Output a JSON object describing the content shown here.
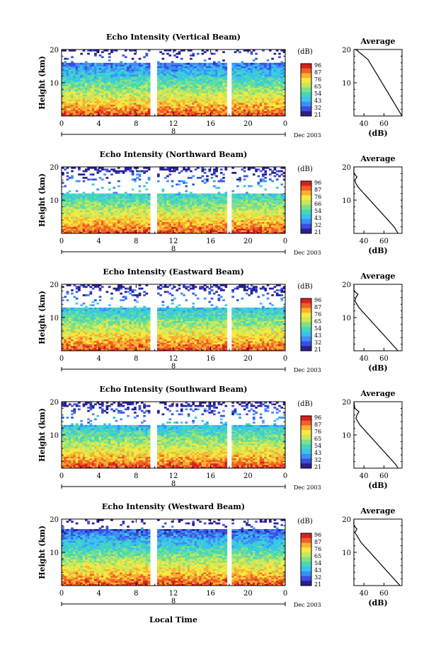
{
  "figure": {
    "xlabel": "Local Time",
    "date_label": "Dec 2003",
    "day_label": "8"
  },
  "chart_data": [
    {
      "type": "heatmap",
      "title": "Echo Intensity (Vertical Beam)",
      "ylabel": "Height (km)",
      "x_ticks": [
        "0",
        "4",
        "8",
        "12",
        "16",
        "20",
        "0"
      ],
      "y_ticks": [
        "10",
        "20"
      ],
      "xlim": [
        0,
        24
      ],
      "ylim": [
        0,
        20
      ],
      "colorbar": {
        "label": "(dB)",
        "ticks": [
          "96",
          "87",
          "76",
          "65",
          "54",
          "43",
          "32",
          "21"
        ]
      },
      "gaps_hours": [
        9.9,
        18.0
      ],
      "echo_top_km": 16
    },
    {
      "type": "line",
      "title": "Average",
      "xlabel": "(dB)",
      "x_ticks": [
        "40",
        "60"
      ],
      "y_ticks": [
        "10",
        "20"
      ],
      "ylim": [
        0,
        20
      ],
      "x": [
        78,
        76,
        74,
        72,
        70,
        68,
        66,
        64,
        62,
        60,
        58,
        56,
        54,
        52,
        50,
        48,
        46,
        44,
        42,
        40,
        38,
        36,
        34,
        32,
        30,
        30,
        31,
        34,
        30,
        30
      ],
      "y": [
        0,
        1,
        2,
        3,
        4,
        5,
        6,
        7,
        8,
        9,
        10,
        11,
        12,
        13,
        14,
        15,
        16,
        17,
        17.5,
        18,
        18.5,
        19,
        19.5,
        20,
        20,
        20,
        20,
        20,
        20,
        20
      ]
    },
    {
      "type": "heatmap",
      "title": "Echo Intensity (Northward Beam)",
      "ylabel": "Height (km)",
      "x_ticks": [
        "0",
        "4",
        "8",
        "12",
        "16",
        "20",
        "0"
      ],
      "y_ticks": [
        "10",
        "20"
      ],
      "xlim": [
        0,
        24
      ],
      "ylim": [
        0,
        20
      ],
      "colorbar": {
        "label": "(dB)",
        "ticks": [
          "96",
          "87",
          "76",
          "66",
          "54",
          "43",
          "32",
          "21"
        ]
      },
      "gaps_hours": [
        9.9,
        18.0
      ],
      "echo_top_km": 12
    },
    {
      "type": "line",
      "title": "Average",
      "xlabel": "(dB)",
      "x_ticks": [
        "40",
        "60"
      ],
      "y_ticks": [
        "10",
        "20"
      ],
      "ylim": [
        0,
        20
      ],
      "x": [
        74,
        72,
        70,
        67,
        64,
        61,
        58,
        55,
        52,
        49,
        46,
        43,
        40,
        37,
        34,
        32,
        31,
        33,
        30,
        30
      ],
      "y": [
        0,
        1,
        2,
        3,
        4,
        5,
        6,
        7,
        8,
        9,
        10,
        11,
        12,
        13,
        14,
        15,
        16,
        17,
        18,
        20
      ]
    },
    {
      "type": "heatmap",
      "title": "Echo Intensity (Eastward Beam)",
      "ylabel": "Height (km)",
      "x_ticks": [
        "0",
        "4",
        "8",
        "12",
        "16",
        "20",
        "0"
      ],
      "y_ticks": [
        "10",
        "20"
      ],
      "xlim": [
        0,
        24
      ],
      "ylim": [
        0,
        20
      ],
      "colorbar": {
        "label": "(dB)",
        "ticks": [
          "96",
          "87",
          "76",
          "65",
          "54",
          "43",
          "32",
          "21"
        ]
      },
      "gaps_hours": [
        9.9,
        18.0
      ],
      "echo_top_km": 13
    },
    {
      "type": "line",
      "title": "Average",
      "xlabel": "(dB)",
      "x_ticks": [
        "40",
        "60"
      ],
      "y_ticks": [
        "10",
        "20"
      ],
      "ylim": [
        0,
        20
      ],
      "x": [
        74,
        71,
        68,
        65,
        62,
        59,
        56,
        53,
        50,
        47,
        44,
        41,
        38,
        35,
        33,
        31,
        32,
        34,
        30,
        30
      ],
      "y": [
        0,
        1,
        2,
        3,
        4,
        5,
        6,
        7,
        8,
        9,
        10,
        11,
        12,
        13,
        14,
        15,
        16,
        17,
        18,
        20
      ]
    },
    {
      "type": "heatmap",
      "title": "Echo Intensity (Southward Beam)",
      "ylabel": "Height (km)",
      "x_ticks": [
        "0",
        "4",
        "8",
        "12",
        "16",
        "20",
        "0"
      ],
      "y_ticks": [
        "10",
        "20"
      ],
      "xlim": [
        0,
        24
      ],
      "ylim": [
        0,
        20
      ],
      "colorbar": {
        "label": "(dB)",
        "ticks": [
          "96",
          "87",
          "76",
          "65",
          "54",
          "43",
          "32",
          "21"
        ]
      },
      "gaps_hours": [
        9.9,
        18.0
      ],
      "echo_top_km": 13
    },
    {
      "type": "line",
      "title": "Average",
      "xlabel": "(dB)",
      "x_ticks": [
        "40",
        "60"
      ],
      "y_ticks": [
        "10",
        "20"
      ],
      "ylim": [
        0,
        20
      ],
      "x": [
        74,
        72,
        69,
        66,
        63,
        60,
        57,
        54,
        51,
        48,
        45,
        42,
        39,
        36,
        34,
        32,
        33,
        35,
        31,
        30
      ],
      "y": [
        0,
        1,
        2,
        3,
        4,
        5,
        6,
        7,
        8,
        9,
        10,
        11,
        12,
        13,
        14,
        15,
        16,
        17,
        18,
        20
      ]
    },
    {
      "type": "heatmap",
      "title": "Echo Intensity (Westward Beam)",
      "ylabel": "Height (km)",
      "x_ticks": [
        "0",
        "4",
        "8",
        "12",
        "16",
        "20",
        "0"
      ],
      "y_ticks": [
        "10",
        "20"
      ],
      "xlim": [
        0,
        24
      ],
      "ylim": [
        0,
        20
      ],
      "colorbar": {
        "label": "(dB)",
        "ticks": [
          "96",
          "87",
          "76",
          "65",
          "54",
          "43",
          "32",
          "21"
        ]
      },
      "gaps_hours": [
        9.9,
        18.0
      ],
      "echo_top_km": 17
    },
    {
      "type": "line",
      "title": "Average",
      "xlabel": "(dB)",
      "x_ticks": [
        "40",
        "60"
      ],
      "y_ticks": [
        "10",
        "20"
      ],
      "ylim": [
        0,
        20
      ],
      "x": [
        76,
        73,
        70,
        67,
        64,
        61,
        58,
        55,
        52,
        49,
        46,
        43,
        40,
        37,
        35,
        33,
        31,
        33,
        30,
        30
      ],
      "y": [
        0,
        1,
        2,
        3,
        4,
        5,
        6,
        7,
        8,
        9,
        10,
        11,
        12,
        13,
        14,
        15,
        16,
        17,
        18,
        20
      ]
    }
  ]
}
